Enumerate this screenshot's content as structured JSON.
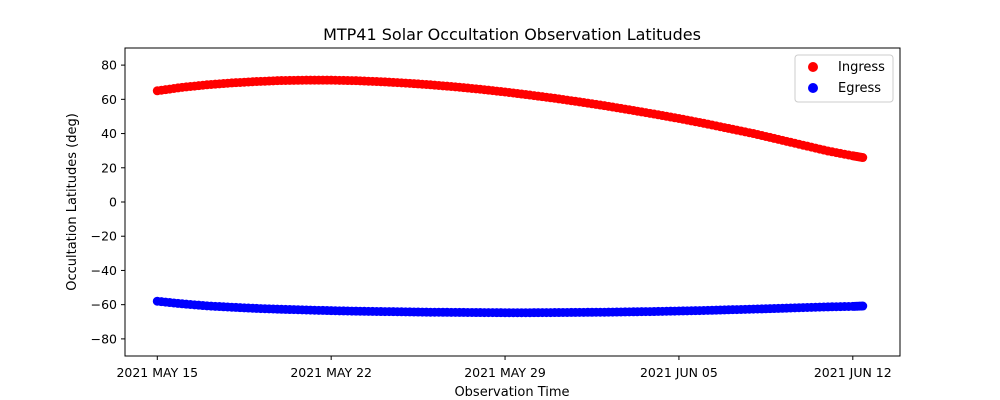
{
  "chart_data": {
    "type": "scatter",
    "title": "MTP41 Solar Occultation Observation Latitudes",
    "xlabel": "Observation Time",
    "ylabel": "Occultation Latitudes (deg)",
    "x_unit": "days since 2021 MAY 15",
    "xlim": [
      -1.3,
      29.9
    ],
    "ylim": [
      -90,
      90
    ],
    "x_ticks": [
      {
        "value": 0,
        "label": "2021 MAY 15"
      },
      {
        "value": 7,
        "label": "2021 MAY 22"
      },
      {
        "value": 14,
        "label": "2021 MAY 29"
      },
      {
        "value": 21,
        "label": "2021 JUN 05"
      },
      {
        "value": 28,
        "label": "2021 JUN 12"
      }
    ],
    "y_ticks": [
      80,
      60,
      40,
      20,
      0,
      -20,
      -40,
      -60,
      -80
    ],
    "y_tick_labels": [
      "80",
      "60",
      "40",
      "20",
      "0",
      "−20",
      "−40",
      "−60",
      "−80"
    ],
    "legend_position": "top-right",
    "series": [
      {
        "name": "Ingress",
        "color": "#ff0000",
        "x": [
          0,
          1,
          2,
          3,
          4,
          5,
          6,
          7,
          8,
          9,
          10,
          11,
          12,
          13,
          14,
          15,
          16,
          17,
          18,
          19,
          20,
          21,
          22,
          23,
          24,
          25,
          26,
          27,
          28,
          28.4
        ],
        "y": [
          65,
          67,
          68.5,
          69.6,
          70.4,
          71,
          71.2,
          71.2,
          70.9,
          70.3,
          69.5,
          68.5,
          67.3,
          65.9,
          64.3,
          62.5,
          60.6,
          58.5,
          56.3,
          53.9,
          51.4,
          48.8,
          46,
          43,
          40,
          36.6,
          33.2,
          29.8,
          27,
          26
        ]
      },
      {
        "name": "Egress",
        "color": "#0000ff",
        "x": [
          0,
          1,
          2,
          3,
          4,
          5,
          6,
          7,
          8,
          9,
          10,
          11,
          12,
          13,
          14,
          15,
          16,
          17,
          18,
          19,
          20,
          21,
          22,
          23,
          24,
          25,
          26,
          27,
          28,
          28.4
        ],
        "y": [
          -58,
          -59.5,
          -60.7,
          -61.5,
          -62.2,
          -62.7,
          -63.1,
          -63.5,
          -63.8,
          -64,
          -64.2,
          -64.4,
          -64.5,
          -64.6,
          -64.7,
          -64.7,
          -64.6,
          -64.5,
          -64.4,
          -64.2,
          -64,
          -63.7,
          -63.4,
          -63,
          -62.6,
          -62.2,
          -61.7,
          -61.3,
          -61,
          -60.8
        ]
      }
    ]
  }
}
